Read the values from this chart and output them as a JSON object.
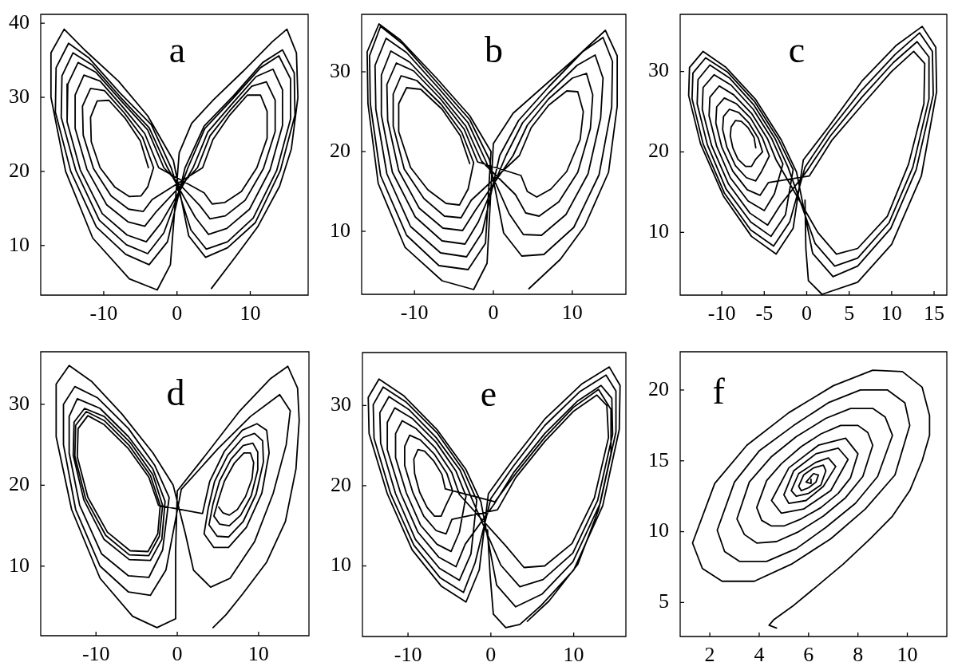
{
  "chart_data": [
    {
      "type": "line",
      "title": "a",
      "xlim": [
        -18.6,
        17.9
      ],
      "ylim": [
        3.3,
        41.2
      ],
      "xticks": [
        -10,
        0,
        10
      ],
      "yticks": [
        10,
        20,
        30,
        40
      ],
      "series": [
        {
          "color": "#000000",
          "x": [
            -3.9,
            -5.0,
            -7.1,
            -9.3,
            -10.9,
            -11.8,
            -11.7,
            -10.5,
            -8.5,
            -6.5,
            -4.9,
            -4.0,
            -3.2,
            -4.7,
            -7.2,
            -9.9,
            -11.8,
            -12.9,
            -12.8,
            -11.4,
            -9.0,
            -6.6,
            -4.6,
            -3.4,
            3.5,
            4.9,
            7.2,
            9.6,
            11.4,
            12.3,
            12.3,
            10.9,
            8.8,
            6.5,
            4.8,
            3.7,
            -2.5,
            -4.4,
            -7.4,
            -10.5,
            -12.7,
            -13.9,
            -13.9,
            -12.3,
            -9.6,
            -6.7,
            -4.4,
            -2.8,
            2.8,
            4.5,
            7.3,
            10.2,
            12.2,
            13.4,
            13.4,
            11.8,
            9.3,
            6.6,
            4.5,
            3.1,
            -1.8,
            -4.0,
            -7.6,
            -11.1,
            -13.5,
            -14.9,
            -15.0,
            -13.2,
            -10.2,
            -6.8,
            -4.2,
            -2.2,
            2.2,
            4.2,
            7.5,
            10.8,
            13.1,
            14.4,
            14.4,
            12.7,
            9.9,
            6.8,
            4.3,
            2.5,
            -1.3,
            -3.8,
            -7.7,
            -11.6,
            -14.2,
            -15.7,
            -15.8,
            -13.8,
            -10.6,
            -6.9,
            -4.0,
            -1.8,
            1.5,
            3.8,
            7.6,
            11.4,
            13.9,
            15.5,
            15.5,
            13.6,
            10.4,
            6.9,
            4.0,
            1.9,
            -0.8,
            -3.5,
            -7.8,
            -12.0,
            -14.8,
            -16.5,
            -16.6,
            -14.5,
            -11.0,
            -7.0,
            -3.8,
            -1.3,
            1.1,
            3.7,
            7.7,
            11.7,
            14.4,
            16.0,
            16.1,
            14.1,
            10.7,
            6.9,
            3.9,
            1.6,
            -0.5,
            -4.0,
            -8.0,
            -12.5,
            -15.4,
            -17.2,
            -17.2,
            -15.2,
            -11.5,
            -6.5,
            -2.7,
            -0.9,
            -0.3,
            0.3,
            2.0,
            5.0,
            9.0,
            13.0,
            15.0,
            16.3,
            16.5,
            15.6,
            14.0,
            11.0,
            8.0,
            4.7
          ],
          "values": [
            20.5,
            24.1,
            27.2,
            29.6,
            29.5,
            27.3,
            24.0,
            20.5,
            17.9,
            16.6,
            16.7,
            17.9,
            20.5,
            24.6,
            27.9,
            30.9,
            31.2,
            28.8,
            24.9,
            20.4,
            16.7,
            14.9,
            14.6,
            16.2,
            20.5,
            24.3,
            27.6,
            30.3,
            30.3,
            28.1,
            24.5,
            20.5,
            17.3,
            15.8,
            15.6,
            17.1,
            20.5,
            25.1,
            28.7,
            32.2,
            33.0,
            30.3,
            25.8,
            20.3,
            15.5,
            13.2,
            12.6,
            14.6,
            20.5,
            24.8,
            28.3,
            31.5,
            32.1,
            29.6,
            25.4,
            20.4,
            16.1,
            14.0,
            13.6,
            15.4,
            20.5,
            25.6,
            29.5,
            33.4,
            34.7,
            31.8,
            26.7,
            20.2,
            14.3,
            11.4,
            10.5,
            13.0,
            20.5,
            25.3,
            29.1,
            32.8,
            33.8,
            31.0,
            26.2,
            20.2,
            14.9,
            12.3,
            11.5,
            13.8,
            20.5,
            25.9,
            30.0,
            34.4,
            36.0,
            32.9,
            27.3,
            20.1,
            13.4,
            10.1,
            8.9,
            11.7,
            20.5,
            25.8,
            29.8,
            34.0,
            35.6,
            32.5,
            27.1,
            20.1,
            13.7,
            10.5,
            9.5,
            12.1,
            20.5,
            26.3,
            30.6,
            35.3,
            37.3,
            34.0,
            28.0,
            20.0,
            12.5,
            8.8,
            7.4,
            10.5,
            20.5,
            26.1,
            30.2,
            34.7,
            36.4,
            33.3,
            27.6,
            20.1,
            13.1,
            9.7,
            8.4,
            11.3,
            21.5,
            27.5,
            32.2,
            36.3,
            39.2,
            36.0,
            30.0,
            20.0,
            11.0,
            5.5,
            4.0,
            7.4,
            15.0,
            22.5,
            26.5,
            29.7,
            33.5,
            37.5,
            39.2,
            36.0,
            30.0,
            23.0,
            18.0,
            12.5,
            8.5,
            4.2
          ]
        }
      ]
    },
    {
      "type": "line",
      "title": "b",
      "xlim": [
        -16.7,
        16.8
      ],
      "ylim": [
        2.1,
        37.2
      ],
      "xticks": [
        -10,
        0,
        10
      ],
      "yticks": [
        10,
        20,
        30
      ],
      "series": [
        {
          "color": "#000000",
          "x": [
            -3.0,
            -4.2,
            -6.5,
            -9.2,
            -11.0,
            -12.0,
            -12.0,
            -10.5,
            -8.3,
            -6.0,
            -4.3,
            -3.2,
            -2.5,
            -4.0,
            -6.6,
            -9.7,
            -11.7,
            -12.7,
            -12.7,
            -11.3,
            -8.8,
            -6.2,
            -4.1,
            -2.8,
            3.3,
            4.8,
            7.0,
            9.3,
            10.7,
            11.4,
            11.0,
            9.3,
            7.3,
            5.5,
            4.3,
            3.5,
            -2.0,
            -3.7,
            -6.7,
            -10.1,
            -12.3,
            -13.5,
            -13.4,
            -12.0,
            -9.4,
            -6.4,
            -3.9,
            -2.3,
            2.5,
            4.3,
            7.0,
            10.0,
            11.8,
            12.6,
            12.3,
            10.7,
            8.3,
            5.8,
            4.1,
            2.8,
            -1.5,
            -3.5,
            -6.8,
            -10.6,
            -13.0,
            -14.2,
            -14.2,
            -12.8,
            -9.9,
            -6.5,
            -3.6,
            -1.9,
            1.6,
            3.7,
            7.0,
            10.6,
            12.9,
            13.9,
            13.6,
            12.0,
            9.2,
            6.1,
            3.8,
            2.0,
            -1.0,
            -3.2,
            -6.9,
            -11.0,
            -13.6,
            -15.0,
            -14.9,
            -13.5,
            -10.5,
            -6.7,
            -3.4,
            -1.4,
            0.8,
            3.2,
            7.0,
            11.3,
            13.9,
            15.1,
            15.0,
            13.4,
            10.2,
            6.4,
            3.6,
            1.3,
            -0.5,
            -3.0,
            -7.0,
            -11.5,
            -14.3,
            -15.7,
            -15.6,
            -14.3,
            -11.0,
            -6.9,
            -3.2,
            -1.0,
            -0.3,
            -3.0,
            -7.2,
            -11.8,
            -14.5,
            -16.0,
            -15.9,
            -14.6,
            -11.2,
            -6.5,
            -2.5,
            -0.8,
            0.0,
            2.5,
            6.5,
            10.5,
            14.2,
            15.7,
            15.7,
            14.6,
            11.6,
            8.5,
            4.5
          ],
          "values": [
            18.5,
            22.0,
            25.3,
            27.8,
            28.0,
            26.0,
            22.5,
            18.0,
            15.2,
            13.5,
            13.3,
            15.3,
            18.6,
            22.4,
            25.9,
            28.9,
            29.5,
            27.2,
            23.2,
            17.8,
            14.1,
            11.9,
            11.7,
            13.9,
            19.5,
            23.0,
            25.8,
            27.6,
            27.5,
            25.0,
            21.5,
            17.5,
            15.3,
            14.3,
            15.0,
            17.0,
            18.7,
            22.8,
            26.6,
            30.1,
            31.1,
            28.4,
            23.9,
            17.6,
            12.9,
            10.4,
            10.1,
            12.6,
            19.5,
            23.3,
            26.6,
            29.2,
            29.8,
            27.1,
            22.9,
            17.4,
            13.7,
            11.9,
            12.3,
            14.6,
            18.8,
            23.2,
            27.2,
            31.2,
            32.6,
            29.6,
            24.6,
            17.4,
            11.8,
            8.8,
            8.4,
            11.2,
            19.5,
            23.6,
            27.3,
            30.8,
            32.1,
            29.2,
            24.2,
            17.2,
            12.1,
            9.5,
            9.6,
            12.2,
            18.9,
            23.6,
            27.9,
            32.4,
            34.2,
            30.8,
            25.3,
            17.2,
            10.6,
            7.3,
            6.8,
            9.9,
            19.5,
            23.9,
            28.1,
            32.5,
            34.3,
            31.3,
            25.6,
            17.1,
            10.5,
            7.1,
            6.9,
            9.8,
            19.0,
            24.0,
            28.5,
            33.5,
            35.7,
            32.0,
            26.0,
            17.0,
            9.5,
            5.7,
            5.2,
            8.5,
            20.0,
            24.5,
            29.2,
            34.0,
            36.0,
            32.5,
            26.0,
            16.0,
            8.0,
            3.8,
            2.7,
            6.0,
            21.0,
            24.8,
            28.3,
            31.8,
            35.2,
            32.0,
            25.7,
            17.4,
            10.7,
            6.5,
            2.8
          ]
        }
      ]
    },
    {
      "type": "line",
      "title": "c",
      "xlim": [
        -14.9,
        16.5
      ],
      "ylim": [
        2.2,
        37.1
      ],
      "xticks": [
        -10,
        -5,
        0,
        5,
        10,
        15
      ],
      "yticks": [
        10,
        20,
        30
      ],
      "series": [
        {
          "color": "#000000",
          "x": [
            -6.0,
            -6.2,
            -6.9,
            -7.7,
            -8.4,
            -8.9,
            -9.0,
            -8.7,
            -8.1,
            -7.2,
            -6.5,
            -6.0,
            -5.2,
            -5.7,
            -6.8,
            -8.0,
            -9.1,
            -9.8,
            -9.9,
            -9.4,
            -8.4,
            -7.1,
            -6.0,
            -5.3,
            -4.4,
            -5.2,
            -6.6,
            -8.3,
            -9.7,
            -10.6,
            -10.7,
            -10.0,
            -8.7,
            -7.0,
            -5.5,
            -4.5,
            0.3,
            3.0,
            6.5,
            10.0,
            12.6,
            13.9,
            13.8,
            12.0,
            9.5,
            6.0,
            3.5,
            1.3,
            -3.6,
            -4.6,
            -6.5,
            -8.6,
            -10.3,
            -11.4,
            -11.5,
            -10.6,
            -9.0,
            -6.9,
            -5.0,
            -3.8,
            -2.8,
            -4.1,
            -6.3,
            -8.9,
            -10.9,
            -12.2,
            -12.3,
            -11.2,
            -9.2,
            -6.7,
            -4.6,
            -3.1,
            0.0,
            2.8,
            6.5,
            10.2,
            13.0,
            14.4,
            14.4,
            12.5,
            9.7,
            6.0,
            3.3,
            1.0,
            -2.2,
            -3.7,
            -6.2,
            -9.1,
            -11.4,
            -12.8,
            -12.9,
            -11.7,
            -9.5,
            -6.6,
            -4.2,
            -2.5,
            -1.6,
            -3.3,
            -6.1,
            -9.3,
            -11.9,
            -13.4,
            -13.5,
            -12.2,
            -9.7,
            -6.6,
            -3.9,
            -2.0,
            -0.2,
            2.6,
            6.5,
            10.4,
            13.3,
            14.8,
            14.9,
            12.9,
            9.9,
            6.0,
            3.1,
            0.7,
            -1.2,
            -3.0,
            -6.0,
            -9.5,
            -12.2,
            -13.8,
            -13.9,
            -12.5,
            -9.8,
            -6.5,
            -3.6,
            -1.6,
            -0.4,
            2.5,
            6.5,
            10.5,
            13.6,
            15.2,
            15.3,
            13.5,
            10.0,
            6.0,
            1.8,
            0.2,
            -0.1,
            -0.2
          ],
          "values": [
            20.5,
            21.8,
            23.0,
            23.8,
            23.9,
            23.1,
            22.0,
            20.5,
            19.1,
            18.2,
            18.2,
            19.1,
            20.0,
            21.7,
            23.6,
            24.9,
            25.3,
            24.4,
            22.8,
            20.6,
            18.3,
            16.8,
            16.4,
            17.6,
            19.5,
            21.7,
            24.2,
            26.0,
            26.7,
            25.6,
            23.6,
            20.6,
            17.6,
            15.3,
            14.6,
            16.2,
            17.0,
            21.5,
            25.8,
            30.0,
            32.5,
            31.0,
            26.0,
            18.5,
            12.0,
            8.0,
            7.3,
            10.0,
            19.0,
            21.6,
            24.8,
            27.1,
            28.2,
            26.8,
            24.5,
            20.7,
            16.8,
            13.9,
            12.7,
            14.8,
            18.5,
            21.6,
            25.3,
            28.3,
            29.6,
            28.0,
            25.3,
            20.8,
            16.0,
            12.4,
            10.9,
            13.4,
            17.6,
            22.0,
            26.8,
            31.1,
            33.7,
            31.8,
            26.6,
            18.1,
            11.2,
            6.8,
            5.8,
            8.6,
            18.1,
            21.6,
            25.8,
            29.2,
            30.8,
            29.0,
            26.0,
            20.9,
            15.4,
            11.3,
            9.5,
            12.2,
            17.8,
            21.5,
            26.2,
            29.9,
            31.7,
            29.8,
            26.6,
            21.0,
            14.9,
            10.3,
            8.3,
            11.3,
            18.1,
            22.5,
            27.7,
            32.1,
            34.8,
            32.5,
            27.1,
            17.8,
            10.5,
            5.8,
            4.5,
            7.4,
            17.5,
            21.5,
            26.5,
            30.5,
            32.5,
            30.5,
            27.0,
            21.0,
            14.5,
            9.5,
            7.3,
            10.5,
            19.0,
            23.0,
            28.8,
            33.2,
            35.6,
            33.0,
            27.5,
            17.0,
            8.5,
            3.8,
            2.3,
            4.0,
            8.0,
            14.0
          ]
        }
      ]
    },
    {
      "type": "line",
      "title": "d",
      "xlim": [
        -16.8,
        16.2
      ],
      "ylim": [
        1.4,
        36.5
      ],
      "xticks": [
        -10,
        0,
        10
      ],
      "yticks": [
        10,
        20,
        30
      ],
      "series": [
        {
          "color": "#000000",
          "x": [
            4.4,
            6.0,
            8.0,
            11.0,
            13.3,
            14.6,
            15.0,
            14.8,
            13.6,
            11.5,
            7.7,
            3.0,
            0.0,
            -0.2,
            -0.2,
            -2.5,
            -5.5,
            -9.5,
            -13.0,
            -14.9,
            -14.9,
            -13.3,
            -10.5,
            -6.8,
            -3.0,
            -0.5,
            1.0,
            2.0,
            4.1,
            6.5,
            9.5,
            11.8,
            13.4,
            13.9,
            12.6,
            9.0,
            5.0,
            0.5,
            -1.4,
            -3.3,
            -6.0,
            -9.5,
            -12.5,
            -14.0,
            -14.0,
            -12.6,
            -9.8,
            -6.0,
            -2.8,
            -1.0,
            -1.8,
            -3.5,
            -6.0,
            -9.3,
            -12.0,
            -13.3,
            -13.3,
            -12.3,
            -9.5,
            -6.0,
            -3.0,
            -1.5,
            -1.9,
            -3.3,
            -5.9,
            -9.0,
            -11.5,
            -12.8,
            -12.7,
            -11.4,
            -9.0,
            -5.8,
            -3.0,
            -1.8,
            -2.2,
            -3.5,
            -5.9,
            -8.8,
            -11.3,
            -12.6,
            -12.5,
            -11.2,
            -9.0,
            -5.9,
            -3.3,
            -2.1,
            -2.4,
            -3.6,
            -5.8,
            -8.6,
            -11.0,
            -12.3,
            -12.2,
            -11.0,
            -9.0,
            -6.0,
            -3.5,
            -2.3,
            3.1,
            4.0,
            5.8,
            8.0,
            9.8,
            11.0,
            11.3,
            10.4,
            8.5,
            6.3,
            4.5,
            3.3,
            3.8,
            4.6,
            6.2,
            8.1,
            9.5,
            10.5,
            10.6,
            9.7,
            8.1,
            6.3,
            4.9,
            3.9,
            4.4,
            5.2,
            6.6,
            8.1,
            9.3,
            9.9,
            9.9,
            9.1,
            7.8,
            6.4,
            5.2,
            4.5,
            5.1,
            5.8,
            7.0,
            8.2,
            9.0,
            9.4,
            9.2,
            8.4,
            7.4,
            6.4,
            5.6,
            5.1
          ],
          "values": [
            2.4,
            4.0,
            6.5,
            10.5,
            15.5,
            22.0,
            28.0,
            32.0,
            34.7,
            33.2,
            29.2,
            23.1,
            19.3,
            12.0,
            3.5,
            2.4,
            3.8,
            8.5,
            17.0,
            26.0,
            32.5,
            34.8,
            32.8,
            28.8,
            24.0,
            20.0,
            14.0,
            9.5,
            7.4,
            8.5,
            13.0,
            19.0,
            25.0,
            29.2,
            31.2,
            28.5,
            24.5,
            19.5,
            9.5,
            6.4,
            6.8,
            10.0,
            17.0,
            25.0,
            30.0,
            32.2,
            30.8,
            27.0,
            22.5,
            18.5,
            12.0,
            8.6,
            8.8,
            11.5,
            17.5,
            24.0,
            28.5,
            30.7,
            29.5,
            26.0,
            22.0,
            18.0,
            13.3,
            10.7,
            10.8,
            13.3,
            18.2,
            23.7,
            27.8,
            29.5,
            28.5,
            25.3,
            21.3,
            17.5,
            13.7,
            11.3,
            11.4,
            13.8,
            18.4,
            23.6,
            27.4,
            29.1,
            28.0,
            24.9,
            21.2,
            17.5,
            14.0,
            11.8,
            11.9,
            14.2,
            18.5,
            23.5,
            27.0,
            28.6,
            27.5,
            24.5,
            21.0,
            17.5,
            16.5,
            20.5,
            24.2,
            26.8,
            27.6,
            26.8,
            24.0,
            19.0,
            14.8,
            12.3,
            12.3,
            14.0,
            17.1,
            20.5,
            23.7,
            25.9,
            26.4,
            25.5,
            22.9,
            18.9,
            15.5,
            13.6,
            13.7,
            15.1,
            17.7,
            20.5,
            23.2,
            24.9,
            25.2,
            24.1,
            21.9,
            18.7,
            16.3,
            15.0,
            15.2,
            16.2,
            18.3,
            20.5,
            22.7,
            24.0,
            24.0,
            22.8,
            20.8,
            18.6,
            17.0,
            16.3,
            16.6,
            17.3
          ]
        }
      ]
    },
    {
      "type": "line",
      "title": "e",
      "xlim": [
        -15.5,
        16.3
      ],
      "ylim": [
        1.2,
        36.6
      ],
      "xticks": [
        -10,
        0,
        10
      ],
      "yticks": [
        10,
        20,
        30
      ],
      "series": [
        {
          "color": "#000000",
          "x": [
            4.4,
            7.0,
            10.5,
            13.0,
            14.5,
            14.5,
            13.0,
            10.0,
            6.5,
            3.0,
            0.5,
            -5.5,
            -5.9,
            -6.9,
            -8.0,
            -8.8,
            -9.3,
            -9.2,
            -8.6,
            -7.7,
            -6.8,
            -6.0,
            -5.5,
            -4.6,
            -5.3,
            -6.8,
            -8.5,
            -9.8,
            -10.4,
            -10.4,
            -9.4,
            -8.1,
            -6.6,
            -5.4,
            -4.7,
            0.8,
            3.0,
            6.5,
            10.0,
            12.8,
            14.0,
            14.2,
            12.5,
            9.8,
            6.5,
            4.0,
            1.8,
            -3.8,
            -4.7,
            -6.7,
            -9.0,
            -10.7,
            -11.5,
            -11.5,
            -10.2,
            -8.5,
            -6.5,
            -4.8,
            -3.8,
            -3.0,
            -4.2,
            -6.6,
            -9.5,
            -11.6,
            -12.5,
            -12.5,
            -10.9,
            -8.8,
            -6.3,
            -4.2,
            -3.1,
            0.4,
            2.8,
            6.5,
            10.4,
            13.3,
            14.6,
            14.7,
            12.9,
            9.9,
            6.3,
            3.5,
            1.2,
            -2.3,
            -3.7,
            -6.6,
            -9.9,
            -12.3,
            -13.4,
            -13.3,
            -11.5,
            -9.1,
            -6.2,
            -3.8,
            -2.4,
            -1.7,
            -3.3,
            -6.5,
            -10.2,
            -13.0,
            -14.2,
            -14.1,
            -12.1,
            -9.3,
            -6.1,
            -3.3,
            -1.9,
            0.0,
            2.7,
            6.5,
            10.7,
            13.9,
            15.1,
            15.1,
            13.2,
            9.9,
            6.2,
            3.0,
            0.7,
            -1.2,
            -3.0,
            -6.5,
            -10.5,
            -13.5,
            -14.8,
            -14.7,
            -12.5,
            -9.5,
            -6.0,
            -3.0,
            -1.4,
            -0.3,
            2.5,
            6.5,
            11.0,
            14.3,
            15.6,
            15.5,
            13.5,
            10.0,
            6.0,
            3.5,
            1.8,
            0.3,
            -0.1,
            -0.4
          ],
          "values": [
            3.1,
            5.6,
            10.2,
            17.0,
            24.0,
            29.5,
            32.0,
            29.8,
            26.0,
            21.5,
            18.0,
            19.6,
            21.4,
            23.1,
            24.3,
            24.5,
            23.3,
            21.5,
            19.2,
            17.3,
            16.2,
            16.2,
            17.4,
            19.3,
            21.5,
            23.9,
            25.7,
            26.3,
            24.9,
            22.5,
            19.1,
            16.2,
            14.4,
            14.0,
            15.8,
            17.0,
            21.0,
            25.5,
            29.3,
            31.3,
            30.0,
            26.0,
            18.5,
            12.8,
            10.0,
            9.8,
            12.5,
            18.9,
            21.6,
            24.7,
            27.1,
            28.1,
            26.5,
            23.5,
            19.1,
            15.1,
            12.7,
            11.8,
            14.2,
            18.7,
            21.8,
            25.4,
            28.4,
            29.7,
            27.9,
            24.5,
            19.1,
            14.2,
            11.1,
            9.9,
            12.7,
            17.7,
            21.7,
            26.5,
            30.5,
            32.5,
            30.9,
            26.4,
            18.2,
            11.6,
            8.3,
            7.4,
            10.1,
            18.4,
            21.9,
            26.0,
            29.5,
            31.1,
            29.1,
            25.3,
            19.0,
            13.3,
            9.7,
            8.2,
            11.5,
            18.2,
            21.9,
            26.6,
            30.4,
            32.3,
            30.1,
            25.9,
            19.0,
            12.6,
            8.5,
            6.7,
            10.4,
            18.4,
            22.4,
            27.5,
            31.7,
            33.8,
            31.8,
            26.7,
            17.8,
            10.5,
            6.5,
            4.9,
            7.6,
            18.0,
            22.0,
            27.0,
            31.2,
            33.3,
            31.0,
            26.5,
            19.0,
            12.0,
            7.5,
            5.5,
            9.5,
            19.0,
            23.0,
            28.3,
            32.7,
            34.8,
            32.5,
            27.0,
            17.5,
            9.5,
            5.0,
            2.7,
            2.3,
            4.0,
            9.0,
            14.5
          ]
        }
      ]
    },
    {
      "type": "line",
      "title": "f",
      "xlim": [
        0.8,
        11.6
      ],
      "ylim": [
        2.6,
        22.7
      ],
      "xticks": [
        2,
        4,
        6,
        8,
        10
      ],
      "yticks": [
        5,
        10,
        15,
        20
      ],
      "series": [
        {
          "color": "#000000",
          "x": [
            4.7,
            4.4,
            4.6,
            5.4,
            6.3,
            7.4,
            8.5,
            9.4,
            10.1,
            10.6,
            10.9,
            10.9,
            10.6,
            9.8,
            8.6,
            7.0,
            5.2,
            3.5,
            2.2,
            1.3,
            1.7,
            2.5,
            3.8,
            5.3,
            6.9,
            8.3,
            9.5,
            10.1,
            9.9,
            9.2,
            8.1,
            6.8,
            5.4,
            4.0,
            3.0,
            2.3,
            2.6,
            3.2,
            4.3,
            5.5,
            6.7,
            7.9,
            8.8,
            9.4,
            9.1,
            8.6,
            7.7,
            6.7,
            5.5,
            4.5,
            3.6,
            3.1,
            3.4,
            3.9,
            4.7,
            5.6,
            6.6,
            7.5,
            8.2,
            8.6,
            8.4,
            8.0,
            7.3,
            6.5,
            5.7,
            4.9,
            4.3,
            3.9,
            4.1,
            4.5,
            5.0,
            5.7,
            6.5,
            7.2,
            7.7,
            8.0,
            7.5,
            6.4,
            5.2,
            4.5,
            4.9,
            5.8,
            6.9,
            7.6,
            7.2,
            6.3,
            5.4,
            5.0,
            5.2,
            5.9,
            6.6,
            7.1,
            6.8,
            6.3,
            5.6,
            5.3,
            5.5,
            6.0,
            6.5,
            6.7,
            6.6,
            6.2,
            5.8,
            5.6,
            5.7,
            6.0,
            6.3,
            6.4,
            6.2,
            5.9,
            6.1,
            6.1
          ],
          "values": [
            3.2,
            3.4,
            3.8,
            4.8,
            6.1,
            7.7,
            9.5,
            11.1,
            12.9,
            15.0,
            16.8,
            18.2,
            20.2,
            21.3,
            21.4,
            20.3,
            18.4,
            16.1,
            13.4,
            9.2,
            7.4,
            6.5,
            6.5,
            7.7,
            9.5,
            11.6,
            14.0,
            17.5,
            19.1,
            20.0,
            20.0,
            19.1,
            17.5,
            15.7,
            13.5,
            10.1,
            8.6,
            7.9,
            7.9,
            8.8,
            10.3,
            12.0,
            13.9,
            16.8,
            18.1,
            18.7,
            18.7,
            18.0,
            16.7,
            15.3,
            13.5,
            10.9,
            9.8,
            9.2,
            9.3,
            10.0,
            11.1,
            12.4,
            13.9,
            16.1,
            17.0,
            17.5,
            17.5,
            16.9,
            16.0,
            14.8,
            13.6,
            11.7,
            10.8,
            10.4,
            10.4,
            10.9,
            11.7,
            12.7,
            13.8,
            15.5,
            16.6,
            16.1,
            14.5,
            12.2,
            11.3,
            11.6,
            12.9,
            15.1,
            15.9,
            15.5,
            14.3,
            12.6,
            12.0,
            12.2,
            13.2,
            14.6,
            15.2,
            14.9,
            14.1,
            12.9,
            12.5,
            12.7,
            13.3,
            14.3,
            14.7,
            14.5,
            14.0,
            13.2,
            12.9,
            13.1,
            13.5,
            14.0,
            14.1,
            13.5,
            13.4,
            13.7
          ]
        }
      ]
    }
  ]
}
